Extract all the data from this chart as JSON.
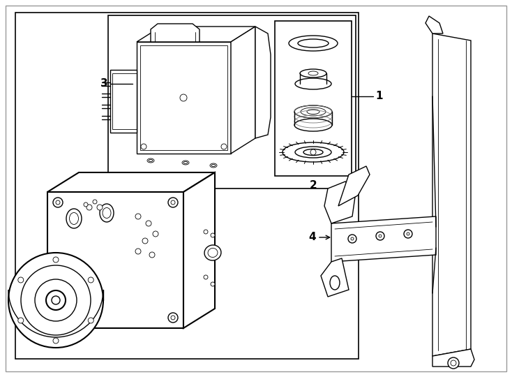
{
  "figure_width": 7.34,
  "figure_height": 5.4,
  "dpi": 100,
  "bg_color": "#ffffff",
  "lc": "#000000",
  "lw": 1.0,
  "lw_thick": 1.5,
  "lw_thin": 0.6,
  "label_1": "1",
  "label_2": "2",
  "label_3": "3",
  "label_4": "4",
  "font_size": 11
}
